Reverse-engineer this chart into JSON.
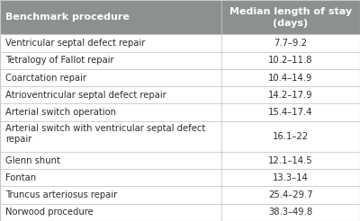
{
  "header": [
    "Benchmark procedure",
    "Median length of stay\n(days)"
  ],
  "rows": [
    [
      "Ventricular septal defect repair",
      "7.7–9.2"
    ],
    [
      "Tetralogy of Fallot repair",
      "10.2–11.8"
    ],
    [
      "Coarctation repair",
      "10.4–14.9"
    ],
    [
      "Atrioventricular septal defect repair",
      "14.2–17.9"
    ],
    [
      "Arterial switch operation",
      "15.4–17.4"
    ],
    [
      "Arterial switch with ventricular septal defect\nrepair",
      "16.1–22"
    ],
    [
      "Glenn shunt",
      "12.1–14.5"
    ],
    [
      "Fontan",
      "13.3–14"
    ],
    [
      "Truncus arteriosus repair",
      "25.4–29.7"
    ],
    [
      "Norwood procedure",
      "38.3–49.8"
    ]
  ],
  "header_bg": "#8c9090",
  "header_text_color": "#ffffff",
  "border_color": "#c8c8c8",
  "text_color": "#2c2c2c",
  "col_split": 0.615,
  "header_fontsize": 8.0,
  "body_fontsize": 7.2,
  "fig_bg": "#f0eeec"
}
